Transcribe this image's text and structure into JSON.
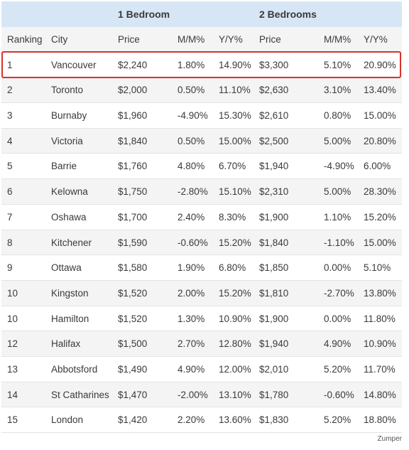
{
  "groups": {
    "one_bedroom": "1 Bedroom",
    "two_bedrooms": "2 Bedrooms"
  },
  "columns": [
    "Ranking",
    "City",
    "Price",
    "M/M%",
    "Y/Y%",
    "Price",
    "M/M%",
    "Y/Y%"
  ],
  "rows": [
    {
      "ranking": "1",
      "city": "Vancouver",
      "price1": "$2,240",
      "mm1": "1.80%",
      "yy1": "14.90%",
      "price2": "$3,300",
      "mm2": "5.10%",
      "yy2": "20.90%",
      "highlighted": true
    },
    {
      "ranking": "2",
      "city": "Toronto",
      "price1": "$2,000",
      "mm1": "0.50%",
      "yy1": "11.10%",
      "price2": "$2,630",
      "mm2": "3.10%",
      "yy2": "13.40%"
    },
    {
      "ranking": "3",
      "city": "Burnaby",
      "price1": "$1,960",
      "mm1": "-4.90%",
      "yy1": "15.30%",
      "price2": "$2,610",
      "mm2": "0.80%",
      "yy2": "15.00%"
    },
    {
      "ranking": "4",
      "city": "Victoria",
      "price1": "$1,840",
      "mm1": "0.50%",
      "yy1": "15.00%",
      "price2": "$2,500",
      "mm2": "5.00%",
      "yy2": "20.80%"
    },
    {
      "ranking": "5",
      "city": "Barrie",
      "price1": "$1,760",
      "mm1": "4.80%",
      "yy1": "6.70%",
      "price2": "$1,940",
      "mm2": "-4.90%",
      "yy2": "6.00%"
    },
    {
      "ranking": "6",
      "city": "Kelowna",
      "price1": "$1,750",
      "mm1": "-2.80%",
      "yy1": "15.10%",
      "price2": "$2,310",
      "mm2": "5.00%",
      "yy2": "28.30%"
    },
    {
      "ranking": "7",
      "city": "Oshawa",
      "price1": "$1,700",
      "mm1": "2.40%",
      "yy1": "8.30%",
      "price2": "$1,900",
      "mm2": "1.10%",
      "yy2": "15.20%"
    },
    {
      "ranking": "8",
      "city": "Kitchener",
      "price1": "$1,590",
      "mm1": "-0.60%",
      "yy1": "15.20%",
      "price2": "$1,840",
      "mm2": "-1.10%",
      "yy2": "15.00%"
    },
    {
      "ranking": "9",
      "city": "Ottawa",
      "price1": "$1,580",
      "mm1": "1.90%",
      "yy1": "6.80%",
      "price2": "$1,850",
      "mm2": "0.00%",
      "yy2": "5.10%"
    },
    {
      "ranking": "10",
      "city": "Kingston",
      "price1": "$1,520",
      "mm1": "2.00%",
      "yy1": "15.20%",
      "price2": "$1,810",
      "mm2": "-2.70%",
      "yy2": "13.80%"
    },
    {
      "ranking": "10",
      "city": "Hamilton",
      "price1": "$1,520",
      "mm1": "1.30%",
      "yy1": "10.90%",
      "price2": "$1,900",
      "mm2": "0.00%",
      "yy2": "11.80%"
    },
    {
      "ranking": "12",
      "city": "Halifax",
      "price1": "$1,500",
      "mm1": "2.70%",
      "yy1": "12.80%",
      "price2": "$1,940",
      "mm2": "4.90%",
      "yy2": "10.90%"
    },
    {
      "ranking": "13",
      "city": "Abbotsford",
      "price1": "$1,490",
      "mm1": "4.90%",
      "yy1": "12.00%",
      "price2": "$2,010",
      "mm2": "5.20%",
      "yy2": "11.70%"
    },
    {
      "ranking": "14",
      "city": "St Catharines",
      "price1": "$1,470",
      "mm1": "-2.00%",
      "yy1": "13.10%",
      "price2": "$1,780",
      "mm2": "-0.60%",
      "yy2": "14.80%"
    },
    {
      "ranking": "15",
      "city": "London",
      "price1": "$1,420",
      "mm1": "2.20%",
      "yy1": "13.60%",
      "price2": "$1,830",
      "mm2": "5.20%",
      "yy2": "18.80%"
    }
  ],
  "source": "Zumper",
  "colors": {
    "group_header_bg": "#d6e6f4",
    "highlight_border": "#d9312b",
    "alt_row_bg": "#f4f4f4"
  }
}
